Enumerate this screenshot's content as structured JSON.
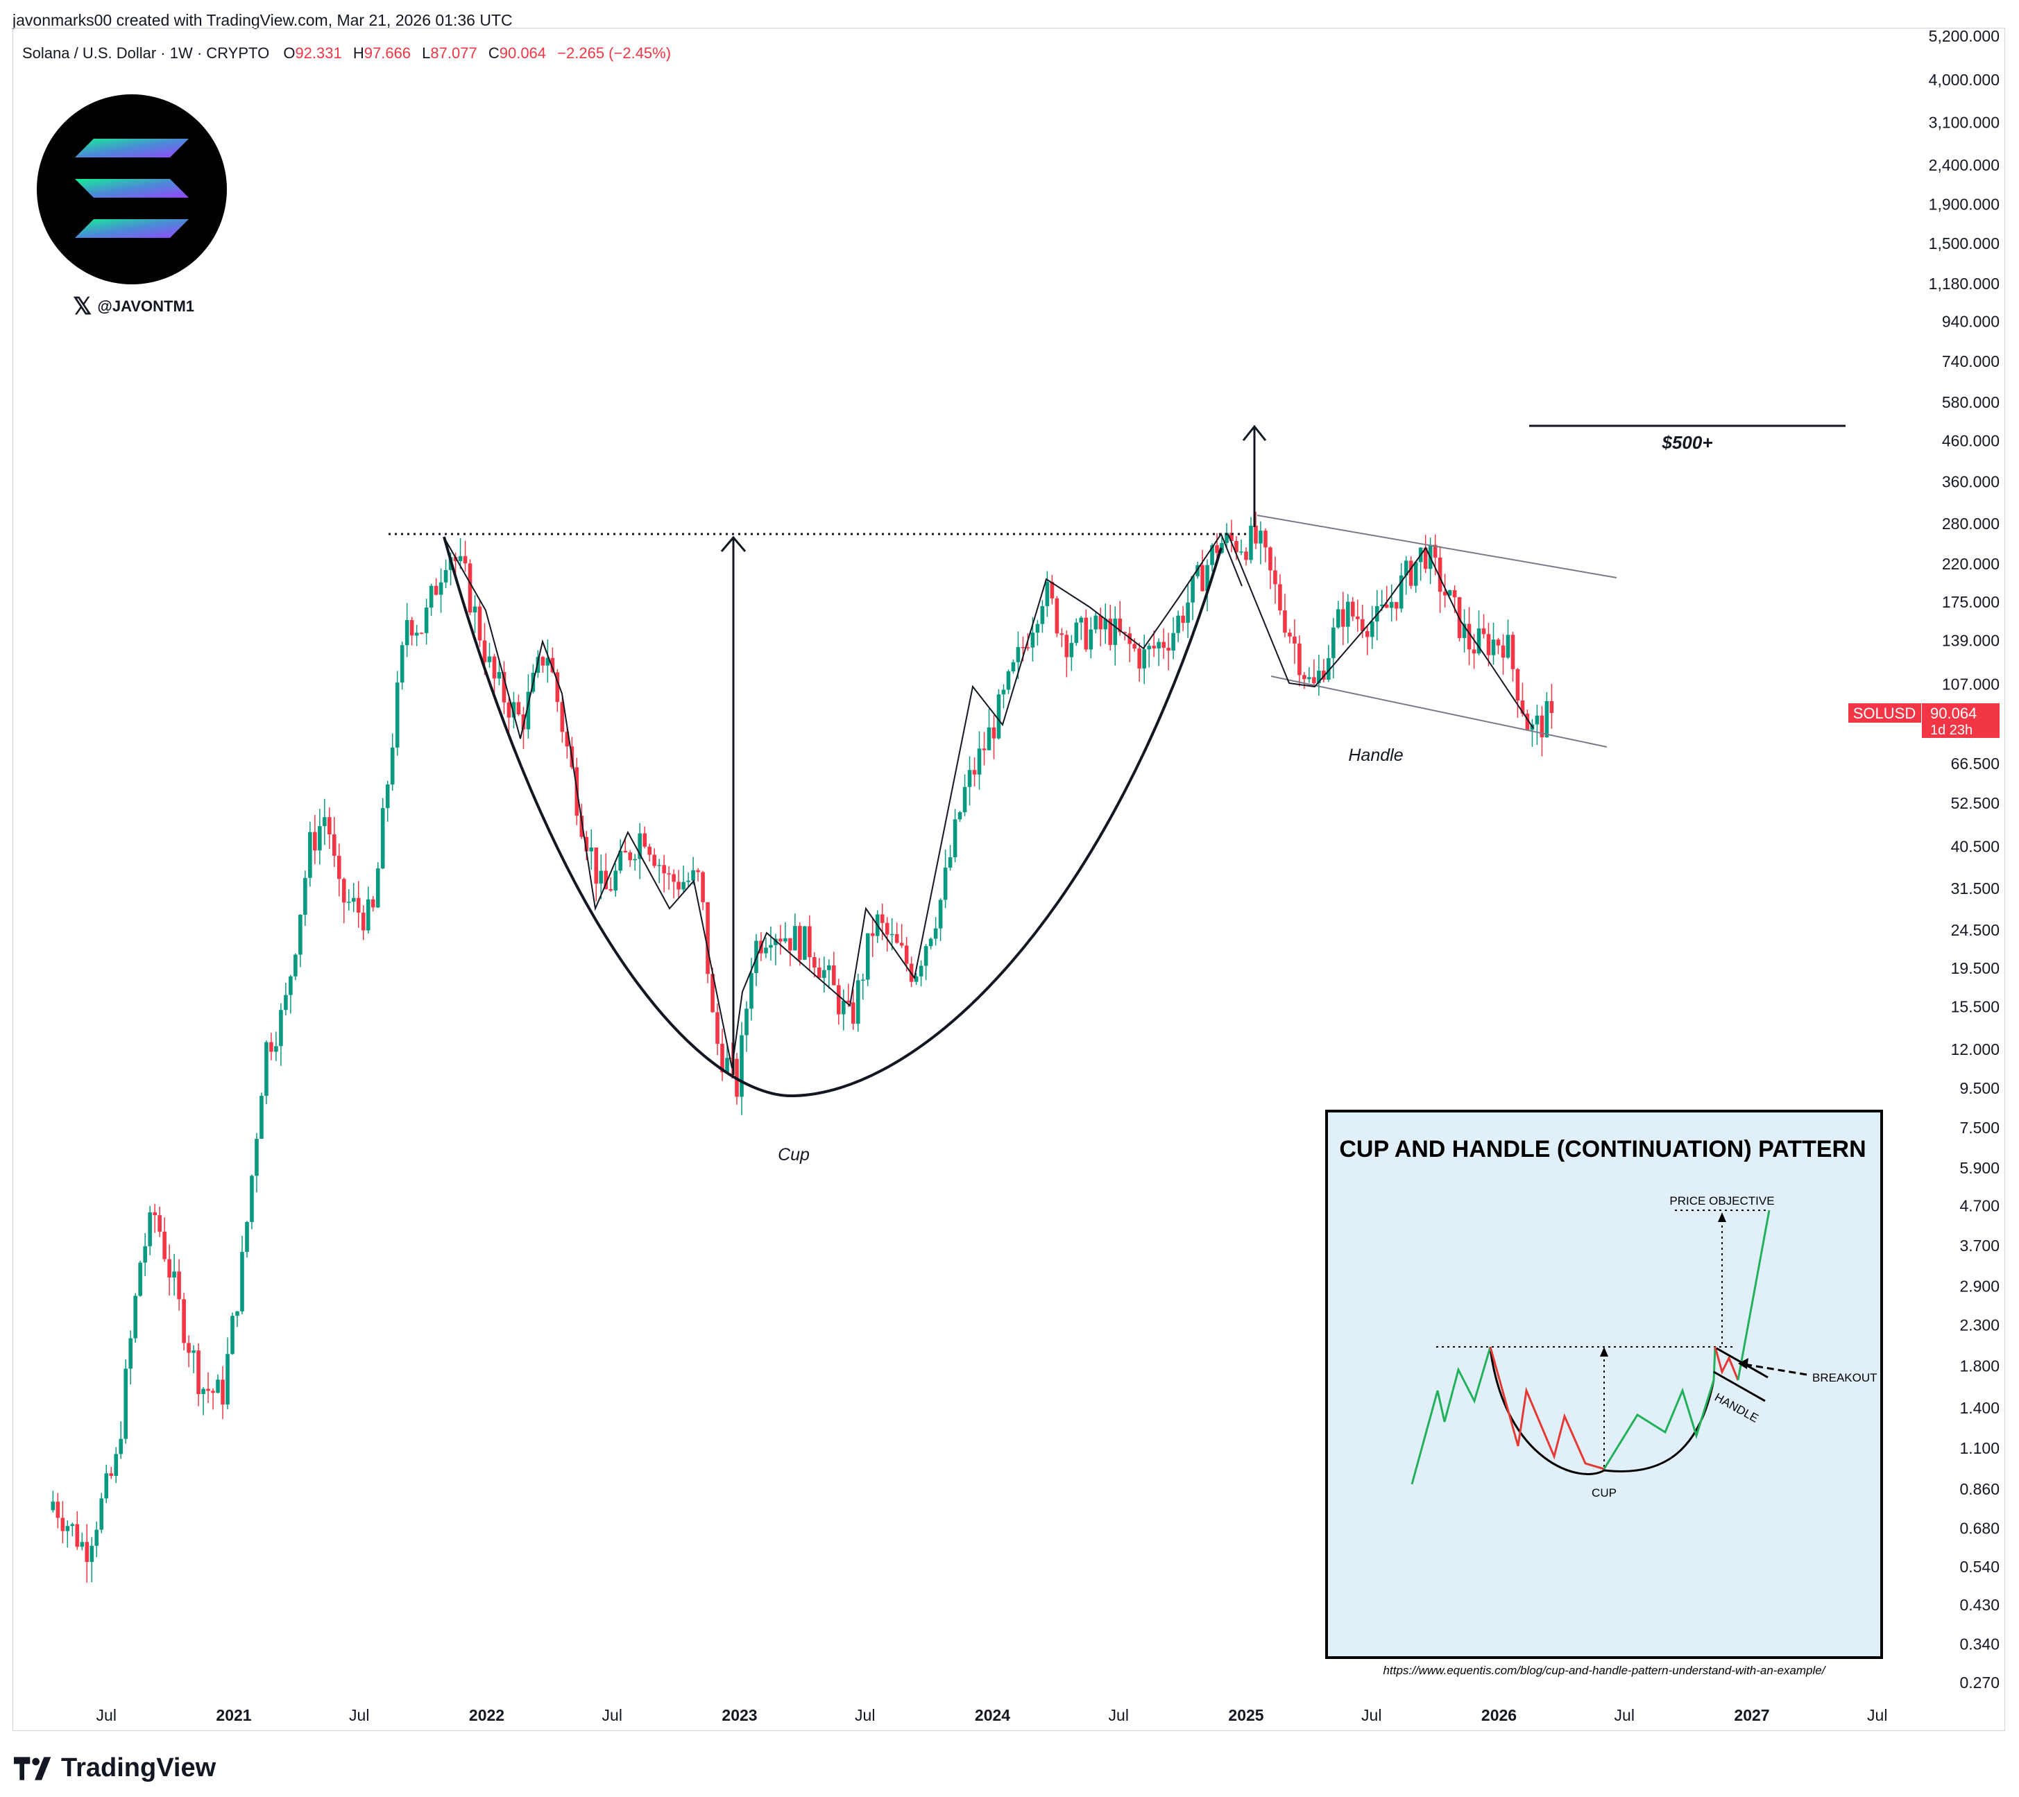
{
  "header": {
    "author_line": "javonmarks00 created with TradingView.com, Mar 21, 2026 01:36 UTC"
  },
  "legend": {
    "symbol": "Solana / U.S. Dollar · 1W · CRYPTO",
    "open_label": "O",
    "open": "92.331",
    "high_label": "H",
    "high": "97.666",
    "low_label": "L",
    "low": "87.077",
    "close_label": "C",
    "close": "90.064",
    "change": "−2.265 (−2.45%)"
  },
  "watermark": {
    "handle": "@JAVONTM1",
    "logo_icon": "solana-logo-icon",
    "x_icon": "x-logo-icon"
  },
  "price_tag": {
    "symbol": "SOLUSD",
    "price": "90.064",
    "countdown": "1d 23h",
    "color": "#f23645"
  },
  "annotations": {
    "target": "$500+",
    "cup": "Cup",
    "handle": "Handle"
  },
  "inset": {
    "title": "CUP AND HANDLE (CONTINUATION) PATTERN",
    "price_objective": "PRICE OBJECTIVE",
    "breakout": "BREAKOUT",
    "handle": "HANDLE",
    "cup": "CUP",
    "source": "https://www.equentis.com/blog/cup-and-handle-pattern-understand-with-an-example/",
    "background": "#e1f0f8"
  },
  "footer": {
    "brand": "TradingView"
  },
  "colors": {
    "up": "#089981",
    "down": "#f23645",
    "text": "#131722"
  },
  "chart_data": {
    "type": "candlestick",
    "scale": "log",
    "title": "Solana / U.S. Dollar · 1W · CRYPTO",
    "y_ticks": [
      "5,200.000",
      "4,000.000",
      "3,100.000",
      "2,400.000",
      "1,900.000",
      "1,500.000",
      "1,180.000",
      "940.000",
      "740.000",
      "580.000",
      "460.000",
      "360.000",
      "280.000",
      "220.000",
      "175.000",
      "139.000",
      "107.000",
      "66.500",
      "52.500",
      "40.500",
      "31.500",
      "24.500",
      "19.500",
      "15.500",
      "12.000",
      "9.500",
      "7.500",
      "5.900",
      "4.700",
      "3.700",
      "2.900",
      "2.300",
      "1.800",
      "1.400",
      "1.100",
      "0.860",
      "0.680",
      "0.540",
      "0.430",
      "0.340",
      "0.270"
    ],
    "x_ticks": [
      "Jul",
      "2021",
      "Jul",
      "2022",
      "Jul",
      "2023",
      "Jul",
      "2024",
      "Jul",
      "2025",
      "Jul",
      "2026",
      "Jul",
      "2027",
      "Jul"
    ],
    "ylim": [
      0.25,
      5600
    ],
    "x_range": [
      "2020-04",
      "2027-10"
    ],
    "series_anchors": [
      [
        "2020-04-15",
        0.8
      ],
      [
        "2020-06-01",
        0.6
      ],
      [
        "2020-07-15",
        1.0
      ],
      [
        "2020-08-20",
        3.5
      ],
      [
        "2020-09-10",
        4.5
      ],
      [
        "2020-10-15",
        2.5
      ],
      [
        "2020-11-15",
        1.6
      ],
      [
        "2020-12-15",
        1.5
      ],
      [
        "2021-01-15",
        3.5
      ],
      [
        "2021-02-15",
        12
      ],
      [
        "2021-03-15",
        15
      ],
      [
        "2021-04-20",
        40
      ],
      [
        "2021-05-15",
        50
      ],
      [
        "2021-06-01",
        30
      ],
      [
        "2021-07-20",
        26
      ],
      [
        "2021-08-15",
        70
      ],
      [
        "2021-09-08",
        160
      ],
      [
        "2021-10-01",
        150
      ],
      [
        "2021-11-06",
        245
      ],
      [
        "2021-12-01",
        200
      ],
      [
        "2022-01-10",
        110
      ],
      [
        "2022-02-20",
        85
      ],
      [
        "2022-03-28",
        135
      ],
      [
        "2022-05-15",
        50
      ],
      [
        "2022-06-18",
        30
      ],
      [
        "2022-08-15",
        45
      ],
      [
        "2022-09-20",
        33
      ],
      [
        "2022-11-05",
        33
      ],
      [
        "2022-11-25",
        13
      ],
      [
        "2022-12-29",
        9.5
      ],
      [
        "2023-01-20",
        22
      ],
      [
        "2023-02-15",
        25
      ],
      [
        "2023-04-15",
        22
      ],
      [
        "2023-06-10",
        14
      ],
      [
        "2023-07-15",
        26
      ],
      [
        "2023-09-10",
        19
      ],
      [
        "2023-10-20",
        30
      ],
      [
        "2023-11-20",
        55
      ],
      [
        "2024-01-15",
        95
      ],
      [
        "2024-03-15",
        190
      ],
      [
        "2024-04-15",
        140
      ],
      [
        "2024-06-15",
        150
      ],
      [
        "2024-08-05",
        125
      ],
      [
        "2024-09-15",
        145
      ],
      [
        "2024-11-22",
        250
      ],
      [
        "2025-01-19",
        250
      ],
      [
        "2025-02-20",
        170
      ],
      [
        "2025-04-07",
        102
      ],
      [
        "2025-05-20",
        165
      ],
      [
        "2025-07-10",
        155
      ],
      [
        "2025-09-15",
        240
      ],
      [
        "2025-10-15",
        185
      ],
      [
        "2025-11-20",
        135
      ],
      [
        "2026-01-10",
        140
      ],
      [
        "2026-02-15",
        80
      ],
      [
        "2026-03-21",
        90.064
      ]
    ]
  }
}
